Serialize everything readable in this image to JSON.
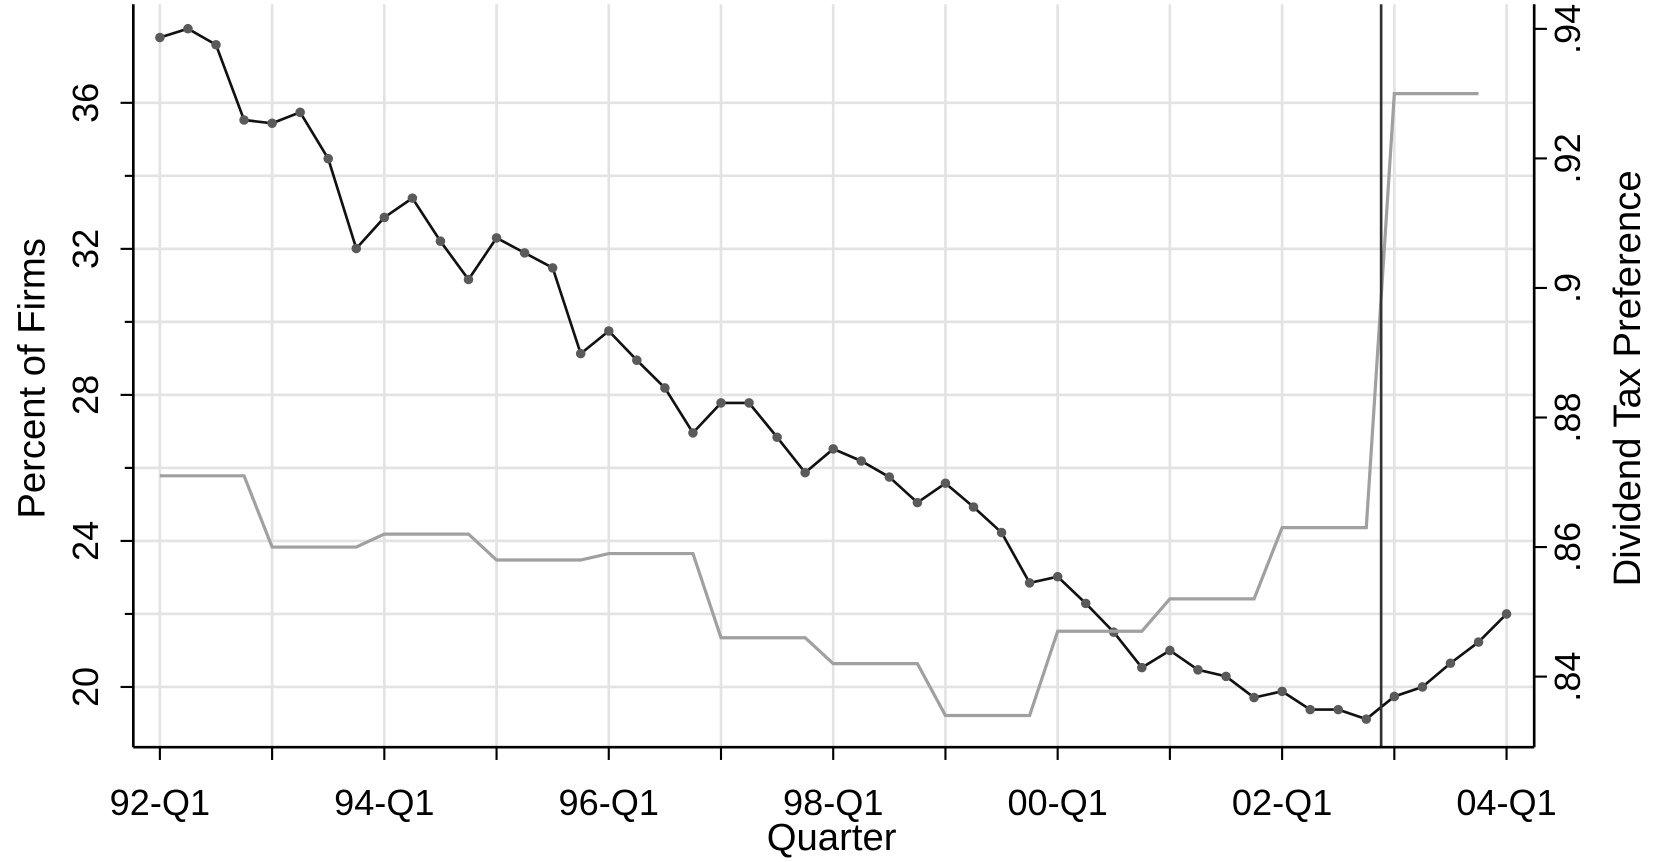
{
  "chart_data": {
    "type": "line",
    "x_label": "Quarter",
    "y_label": "Percent of Firms",
    "y2_label": "Dividend Tax Preference",
    "categories": [
      "92-Q1",
      null,
      null,
      null,
      null,
      null,
      null,
      null,
      "94-Q1",
      null,
      null,
      null,
      null,
      null,
      null,
      null,
      "96-Q1",
      null,
      null,
      null,
      null,
      null,
      null,
      null,
      "98-Q1",
      null,
      null,
      null,
      null,
      null,
      null,
      null,
      "00-Q1",
      null,
      null,
      null,
      null,
      null,
      null,
      null,
      "02-Q1",
      null,
      null,
      null,
      null,
      null,
      null,
      null,
      "04-Q1"
    ],
    "ylim": [
      18.35,
      38.7
    ],
    "yticks": [
      20,
      24,
      28,
      32,
      36
    ],
    "yminorticks": [
      22,
      26,
      30,
      34
    ],
    "y2lim": [
      0.8291,
      0.9438
    ],
    "y2ticks": [
      {
        "value": 0.84,
        "label": ".84"
      },
      {
        "value": 0.86,
        "label": ".86"
      },
      {
        "value": 0.88,
        "label": ".88"
      },
      {
        "value": 0.9,
        "label": ".9"
      },
      {
        "value": 0.92,
        "label": ".92"
      },
      {
        "value": 0.94,
        "label": ".94"
      }
    ],
    "grid": true,
    "series": [
      {
        "color": "#111111",
        "marker_color": "#5a5a5a",
        "markers": true,
        "values": [
          37.79,
          38.03,
          37.59,
          35.53,
          35.44,
          35.74,
          34.47,
          32.01,
          32.86,
          33.39,
          32.21,
          31.16,
          32.3,
          31.89,
          31.48,
          29.13,
          29.75,
          28.95,
          28.19,
          26.96,
          27.78,
          27.78,
          26.84,
          25.87,
          26.52,
          26.19,
          25.75,
          25.05,
          25.58,
          24.93,
          24.23,
          22.85,
          23.02,
          22.29,
          21.5,
          20.53,
          21.0,
          20.47,
          20.29,
          19.71,
          19.88,
          19.38,
          19.38,
          19.12,
          19.74,
          20.0,
          20.65,
          21.23,
          22.0
        ]
      },
      {
        "color": "#a0a0a0",
        "markers": false,
        "axis": "y2",
        "values": [
          0.871,
          0.871,
          0.871,
          0.871,
          0.86,
          0.86,
          0.86,
          0.86,
          0.862,
          0.862,
          0.862,
          0.862,
          0.858,
          0.858,
          0.858,
          0.858,
          0.859,
          0.859,
          0.859,
          0.859,
          0.846,
          0.846,
          0.846,
          0.846,
          0.842,
          0.842,
          0.842,
          0.842,
          0.834,
          0.834,
          0.834,
          0.834,
          0.847,
          0.847,
          0.847,
          0.847,
          0.852,
          0.852,
          0.852,
          0.852,
          0.863,
          0.863,
          0.863,
          0.863,
          0.93,
          0.93,
          0.93,
          0.93,
          null
        ]
      }
    ]
  }
}
